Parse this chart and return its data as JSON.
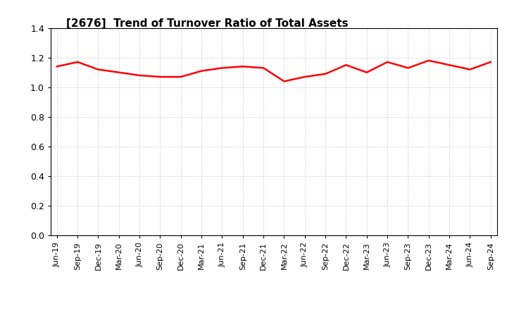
{
  "title": "[2676]  Trend of Turnover Ratio of Total Assets",
  "line_color": "#ff0000",
  "line_width": 1.8,
  "background_color": "#ffffff",
  "grid_color": "#bbbbbb",
  "ylim": [
    0.0,
    1.4
  ],
  "yticks": [
    0.0,
    0.2,
    0.4,
    0.6,
    0.8,
    1.0,
    1.2,
    1.4
  ],
  "x_labels": [
    "Jun-19",
    "Sep-19",
    "Dec-19",
    "Mar-20",
    "Jun-20",
    "Sep-20",
    "Dec-20",
    "Mar-21",
    "Jun-21",
    "Sep-21",
    "Dec-21",
    "Mar-22",
    "Jun-22",
    "Sep-22",
    "Dec-22",
    "Mar-23",
    "Jun-23",
    "Sep-23",
    "Dec-23",
    "Mar-24",
    "Jun-24",
    "Sep-24"
  ],
  "values": [
    1.14,
    1.17,
    1.12,
    1.1,
    1.08,
    1.07,
    1.07,
    1.11,
    1.13,
    1.14,
    1.13,
    1.04,
    1.07,
    1.09,
    1.15,
    1.1,
    1.17,
    1.13,
    1.18,
    1.15,
    1.12,
    1.17
  ]
}
